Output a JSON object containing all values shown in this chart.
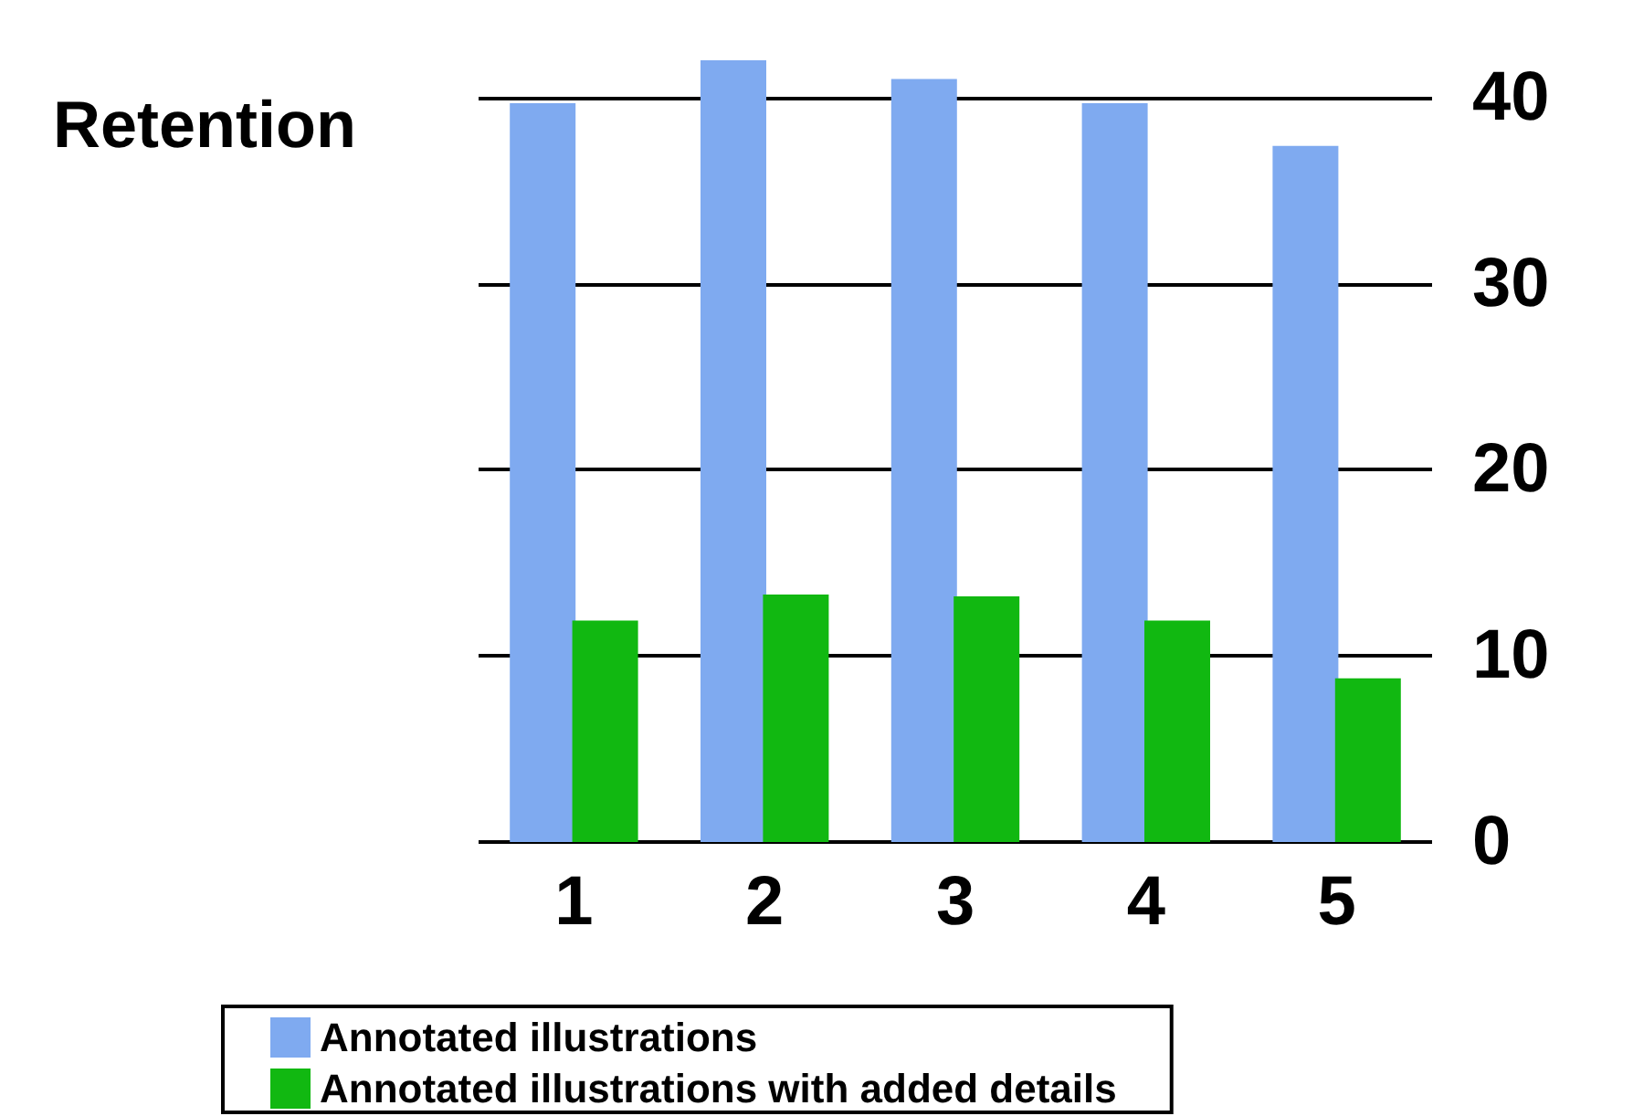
{
  "chart_data": {
    "type": "bar",
    "annotations": [
      "Retention"
    ],
    "categories": [
      "1",
      "2",
      "3",
      "4",
      "5"
    ],
    "series": [
      {
        "name": "Annotated illustrations",
        "color": "#7faaf0",
        "values": [
          39.7,
          42,
          41,
          39.7,
          37.4
        ]
      },
      {
        "name": "Annotated illustrations with added details",
        "color": "#11b811",
        "values": [
          11.9,
          13.3,
          13.2,
          11.9,
          8.8
        ]
      }
    ],
    "ylim": [
      0,
      42
    ],
    "yticks": [
      0,
      10,
      20,
      30,
      40
    ],
    "grid": "y",
    "legend": "bottom"
  }
}
